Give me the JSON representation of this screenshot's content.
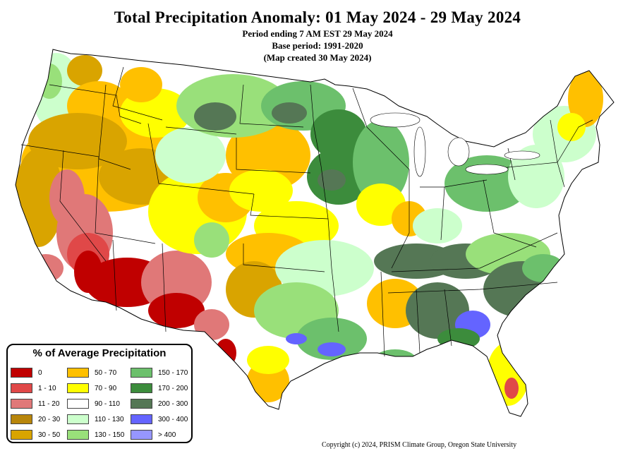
{
  "header": {
    "title": "Total Precipitation Anomaly: 01 May 2024 - 29 May 2024",
    "period": "Period ending 7 AM EST 29 May 2024",
    "base": "Base period: 1991-2020",
    "created": "(Map created 30 May 2024)"
  },
  "legend": {
    "title": "% of Average Precipitation",
    "items": [
      {
        "label": "0",
        "color": "#c00000"
      },
      {
        "label": "1 - 10",
        "color": "#e04848"
      },
      {
        "label": "11 - 20",
        "color": "#e07878"
      },
      {
        "label": "20 - 30",
        "color": "#b8860b"
      },
      {
        "label": "30 - 50",
        "color": "#d9a400"
      },
      {
        "label": "50 - 70",
        "color": "#ffc000"
      },
      {
        "label": "70 - 90",
        "color": "#ffff00"
      },
      {
        "label": "90 - 110",
        "color": "#ffffff"
      },
      {
        "label": "110 - 130",
        "color": "#ccffcc"
      },
      {
        "label": "130 - 150",
        "color": "#99e07a"
      },
      {
        "label": "150 - 170",
        "color": "#6cc06c"
      },
      {
        "label": "170 - 200",
        "color": "#3c8c3c"
      },
      {
        "label": "200 - 300",
        "color": "#557755"
      },
      {
        "label": "300 - 400",
        "color": "#6464ff"
      },
      {
        "label": "> 400",
        "color": "#9696ff"
      }
    ]
  },
  "copyright": "Copyright (c) 2024, PRISM Climate Group, Oregon State University"
}
